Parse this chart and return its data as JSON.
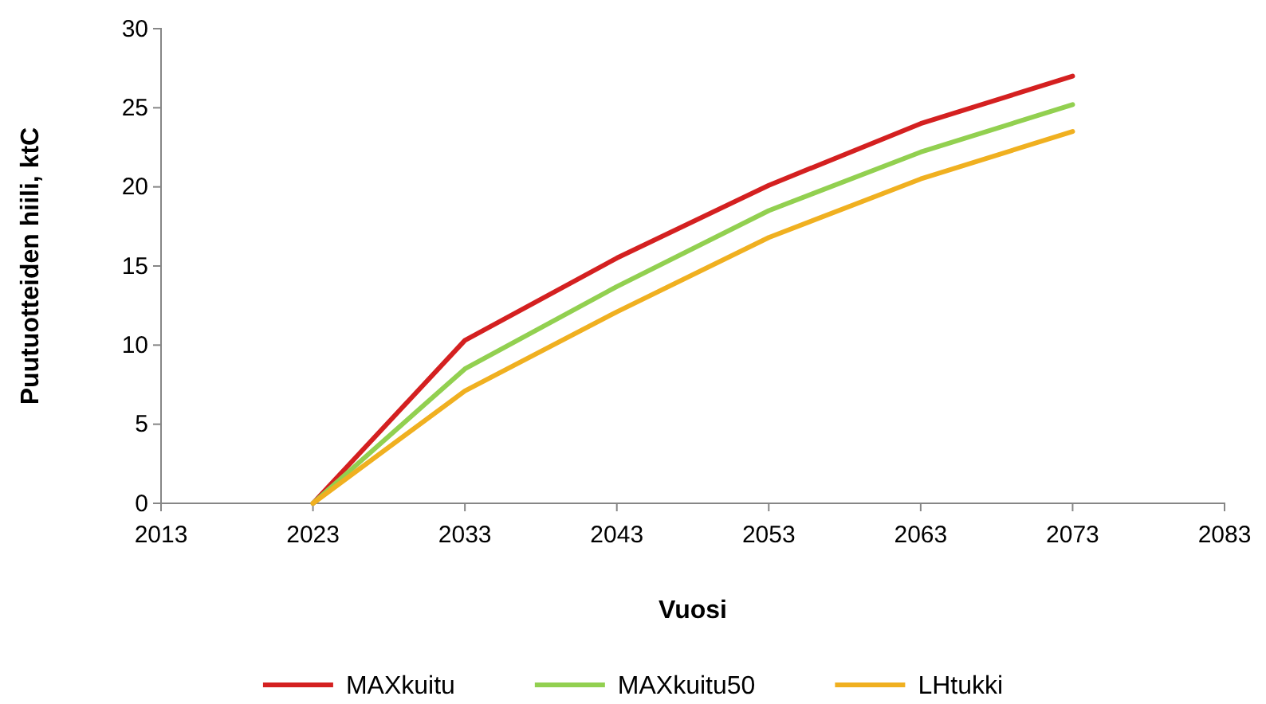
{
  "chart_data": {
    "type": "line",
    "xlabel": "Vuosi",
    "ylabel": "Puutuotteiden hiili, ktC",
    "x": [
      2023,
      2033,
      2043,
      2053,
      2063,
      2073
    ],
    "series": [
      {
        "name": "MAXkuitu",
        "color": "#d42020",
        "values": [
          0,
          10.3,
          15.5,
          20.1,
          24.0,
          27.0
        ]
      },
      {
        "name": "MAXkuitu50",
        "color": "#92d050",
        "values": [
          0,
          8.5,
          13.7,
          18.5,
          22.2,
          25.2
        ]
      },
      {
        "name": "LHtukki",
        "color": "#f0b020",
        "values": [
          0,
          7.1,
          12.1,
          16.8,
          20.5,
          23.5
        ]
      }
    ],
    "xlim": [
      2013,
      2083
    ],
    "xticks": [
      2013,
      2023,
      2033,
      2043,
      2053,
      2063,
      2073,
      2083
    ],
    "ylim": [
      0,
      30
    ],
    "yticks": [
      0,
      5,
      10,
      15,
      20,
      25,
      30
    ],
    "grid": false,
    "legend": "bottom",
    "marker": "none",
    "line_style": "solid"
  }
}
